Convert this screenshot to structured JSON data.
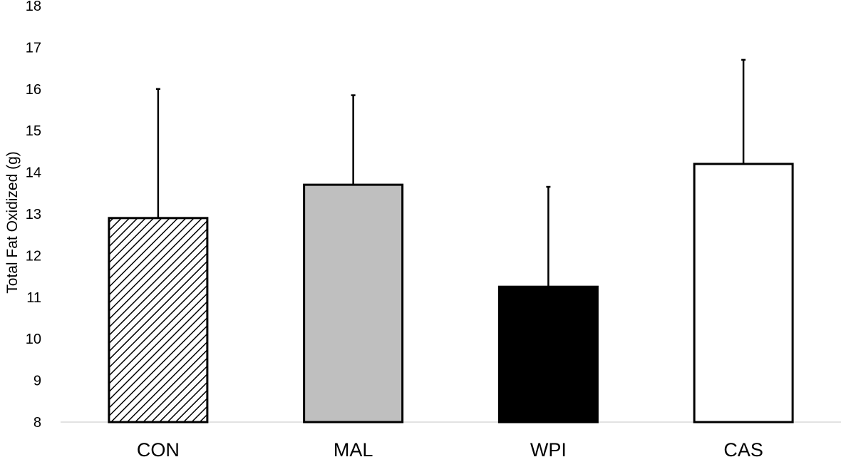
{
  "chart_data": {
    "type": "bar",
    "title": "",
    "xlabel": "",
    "ylabel": "Total Fat Oxidized (g)",
    "ylim": [
      8,
      18
    ],
    "yticks": [
      8,
      9,
      10,
      11,
      12,
      13,
      14,
      15,
      16,
      17,
      18
    ],
    "categories": [
      "CON",
      "MAL",
      "WPI",
      "CAS"
    ],
    "values": [
      12.9,
      13.7,
      11.25,
      14.2
    ],
    "error_upper": [
      3.1,
      2.15,
      2.4,
      2.5
    ],
    "fills": [
      "hatched",
      "#bfbfbf",
      "#000000",
      "#ffffff"
    ],
    "grid": false,
    "legend": "none"
  }
}
